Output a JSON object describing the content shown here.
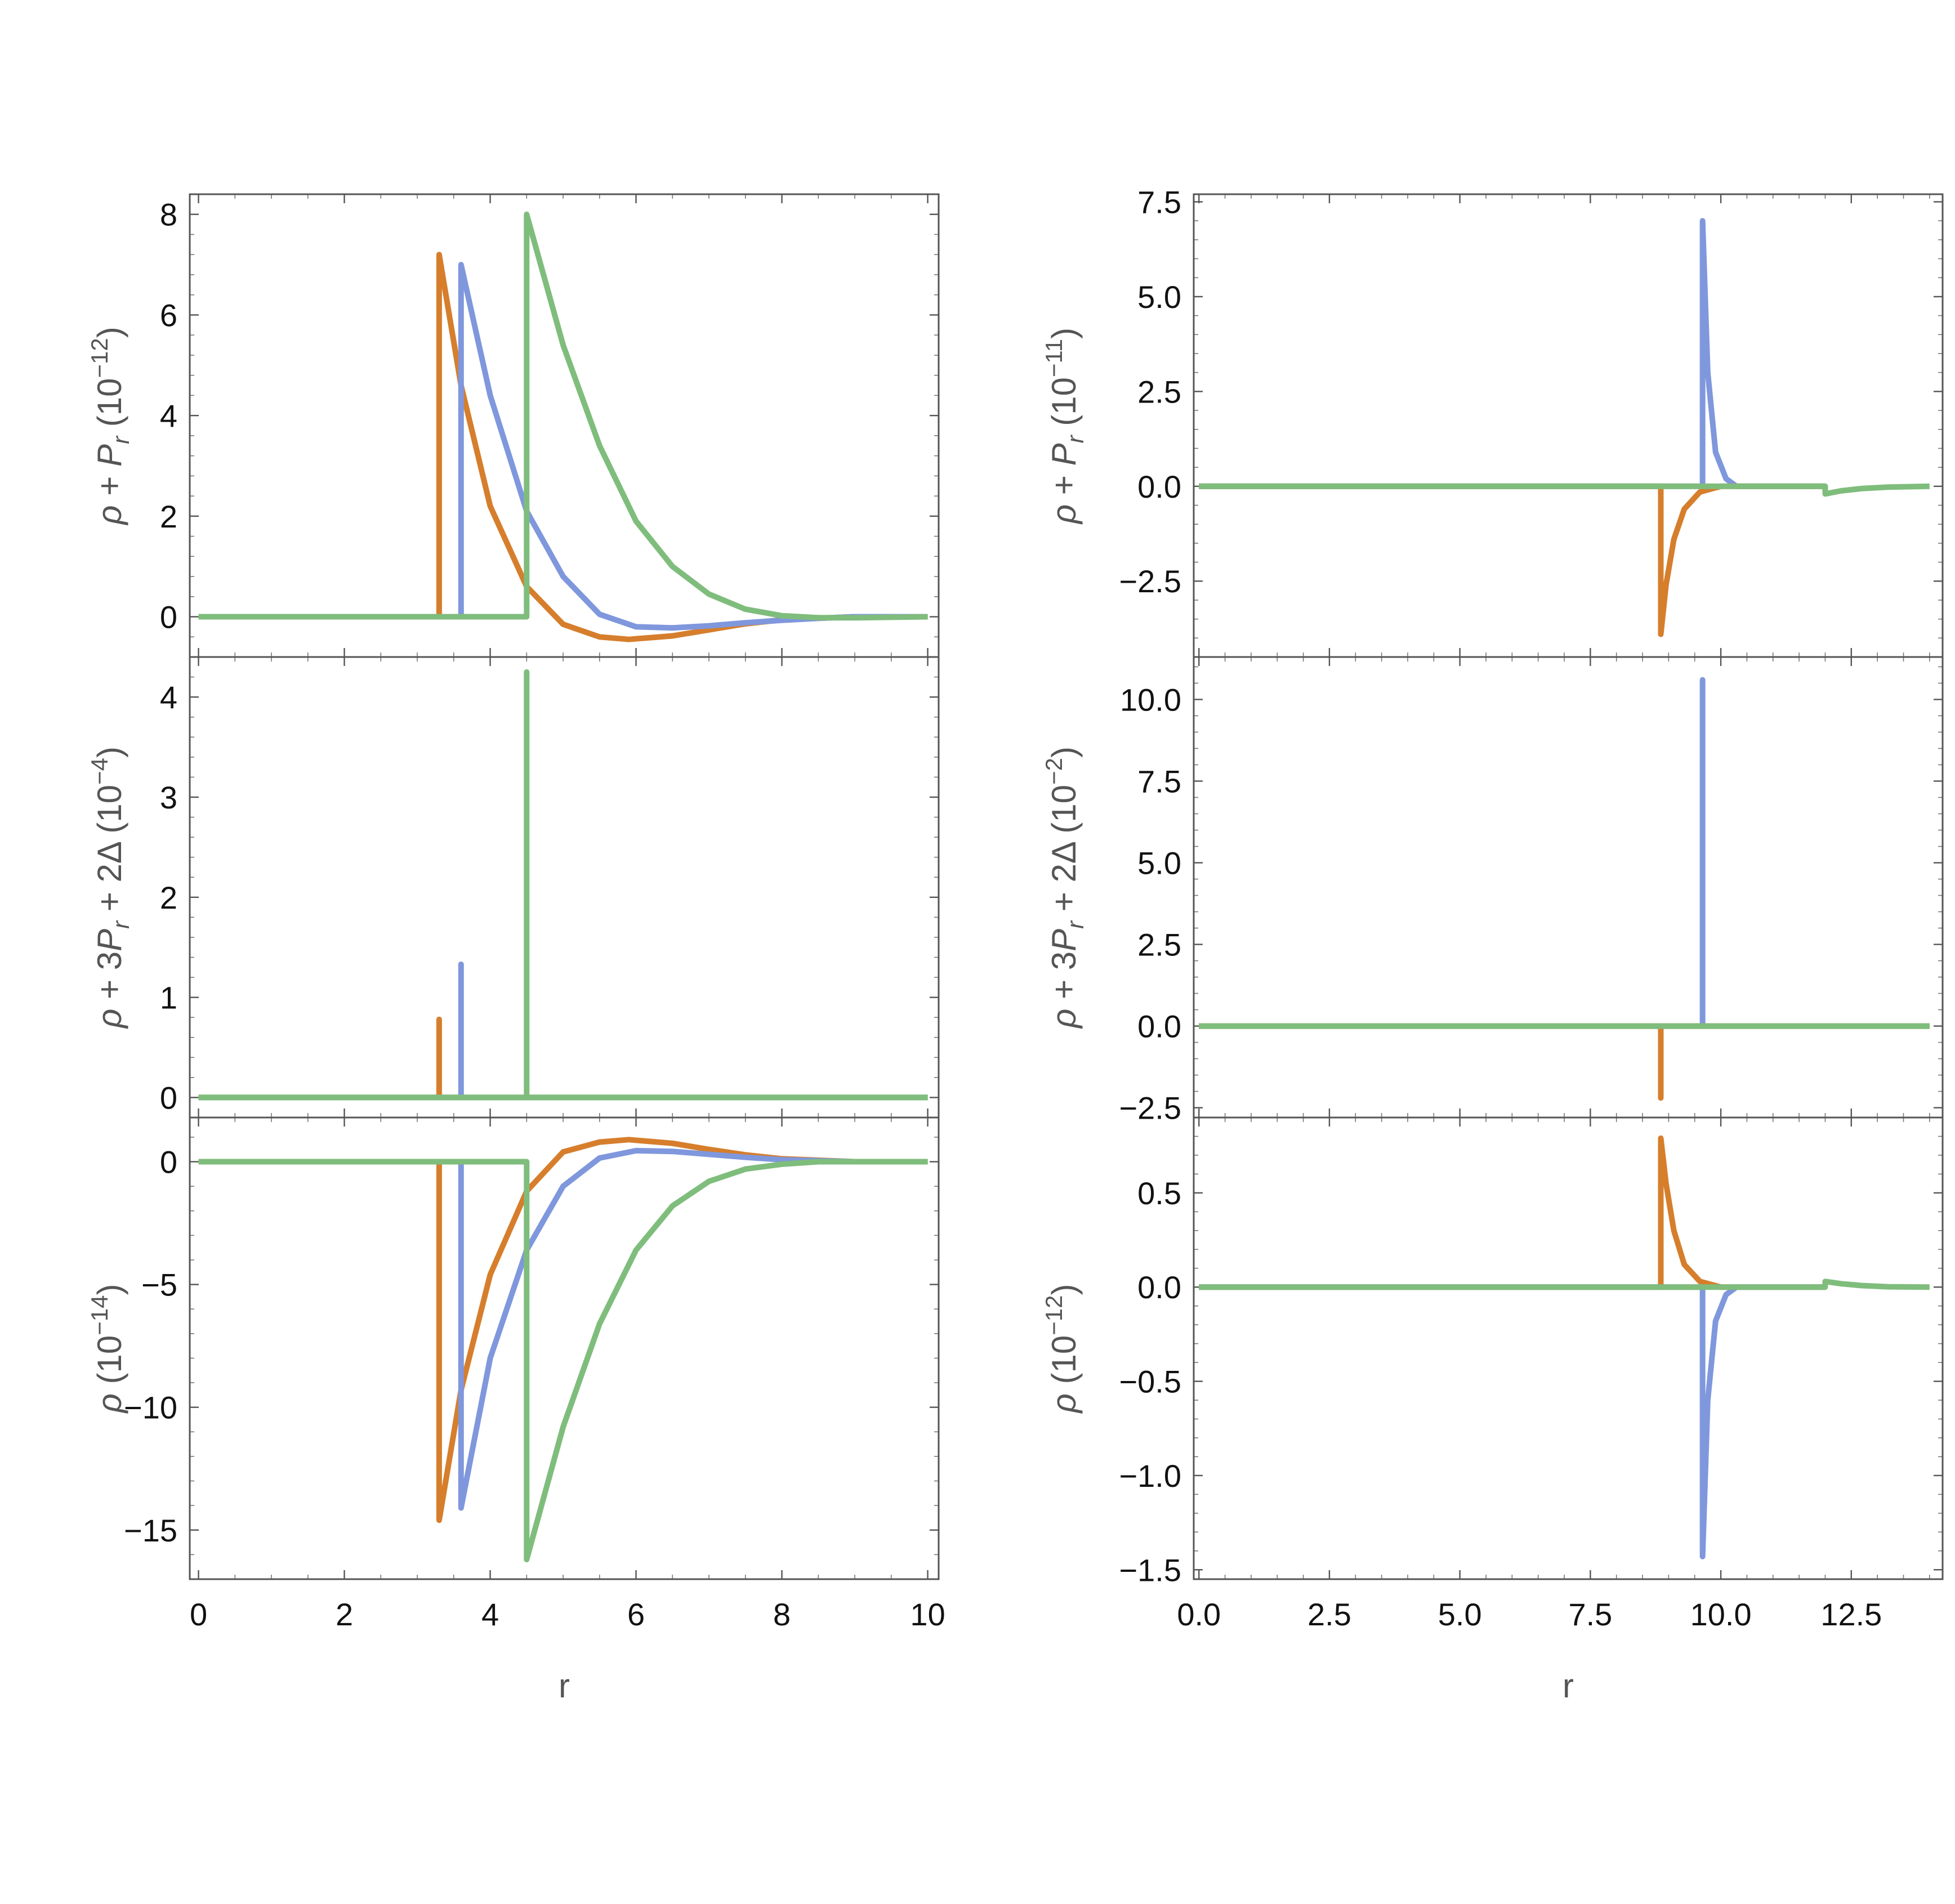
{
  "colors": {
    "orange": "#d67e2c",
    "blue": "#7f97dc",
    "green": "#7fbd7c"
  },
  "chart_data": [
    {
      "type": "line",
      "panel": "left-top",
      "ylabel_parts": [
        "ρ",
        " + ",
        "P",
        "r",
        " (10",
        "−12",
        ")"
      ],
      "xlim": [
        0,
        10
      ],
      "ylim": [
        -0.8,
        8.4
      ],
      "yticks": [
        0,
        2,
        4,
        6,
        8
      ],
      "ytick_labels": [
        "0",
        "2",
        "4",
        "6",
        "8"
      ],
      "series": [
        {
          "color": "orange",
          "x": [
            0,
            3.3,
            3.3,
            3.6,
            4.0,
            4.5,
            5.0,
            5.5,
            5.9,
            6.5,
            7.0,
            7.5,
            8.0,
            9.0,
            10.0
          ],
          "y": [
            0,
            0,
            7.2,
            4.6,
            2.2,
            0.6,
            -0.15,
            -0.4,
            -0.45,
            -0.38,
            -0.26,
            -0.14,
            -0.06,
            0,
            0
          ]
        },
        {
          "color": "blue",
          "x": [
            0,
            3.6,
            3.6,
            4.0,
            4.5,
            5.0,
            5.5,
            6.0,
            6.5,
            7.0,
            7.5,
            8.0,
            8.5,
            9.0,
            10.0
          ],
          "y": [
            0,
            0,
            7.0,
            4.4,
            2.1,
            0.8,
            0.05,
            -0.2,
            -0.22,
            -0.18,
            -0.12,
            -0.07,
            -0.03,
            0,
            0
          ]
        },
        {
          "color": "green",
          "x": [
            0,
            4.5,
            4.5,
            5.0,
            5.5,
            6.0,
            6.5,
            7.0,
            7.5,
            8.0,
            8.5,
            9.0,
            10.0
          ],
          "y": [
            0,
            0,
            8.0,
            5.4,
            3.4,
            1.9,
            1.0,
            0.45,
            0.15,
            0.02,
            -0.02,
            -0.02,
            0
          ]
        }
      ]
    },
    {
      "type": "line",
      "panel": "left-middle",
      "ylabel_parts": [
        "ρ",
        " + 3",
        "P",
        "r",
        " + 2Δ (10",
        "−4",
        ")"
      ],
      "xlim": [
        0,
        10
      ],
      "ylim": [
        -0.2,
        4.4
      ],
      "yticks": [
        0,
        1,
        2,
        3,
        4
      ],
      "ytick_labels": [
        "0",
        "1",
        "2",
        "3",
        "4"
      ],
      "series": [
        {
          "color": "orange",
          "x": [
            0,
            3.3,
            3.3,
            3.3,
            10.0
          ],
          "y": [
            0,
            0,
            0.78,
            0,
            0
          ]
        },
        {
          "color": "blue",
          "x": [
            0,
            3.6,
            3.6,
            3.6,
            10.0
          ],
          "y": [
            0,
            0,
            1.33,
            0,
            0
          ]
        },
        {
          "color": "green",
          "x": [
            0,
            4.5,
            4.5,
            4.5,
            10.0
          ],
          "y": [
            0,
            0,
            4.25,
            0,
            0
          ]
        }
      ]
    },
    {
      "type": "line",
      "panel": "left-bottom",
      "ylabel_parts": [
        "ρ",
        "  (10",
        "−14",
        ")"
      ],
      "xlim": [
        0,
        10
      ],
      "ylim": [
        -17,
        1.8
      ],
      "yticks": [
        0,
        -5,
        -10,
        -15
      ],
      "ytick_labels": [
        "0",
        "−5",
        "−10",
        "−15"
      ],
      "xticks": [
        0,
        2,
        4,
        6,
        8,
        10
      ],
      "xtick_labels": [
        "0",
        "2",
        "4",
        "6",
        "8",
        "10"
      ],
      "xlabel": "r",
      "series": [
        {
          "color": "orange",
          "x": [
            0,
            3.3,
            3.3,
            3.6,
            4.0,
            4.5,
            5.0,
            5.5,
            5.9,
            6.5,
            7.0,
            7.5,
            8.0,
            9.0,
            10.0
          ],
          "y": [
            0,
            0,
            -14.6,
            -9.3,
            -4.6,
            -1.2,
            0.4,
            0.8,
            0.9,
            0.75,
            0.5,
            0.28,
            0.12,
            0,
            0
          ]
        },
        {
          "color": "blue",
          "x": [
            0,
            3.6,
            3.6,
            4.0,
            4.5,
            5.0,
            5.5,
            6.0,
            6.5,
            7.0,
            7.5,
            8.0,
            9.0,
            10.0
          ],
          "y": [
            0,
            0,
            -14.1,
            -8.0,
            -3.6,
            -1.0,
            0.15,
            0.45,
            0.42,
            0.3,
            0.18,
            0.08,
            0,
            0
          ]
        },
        {
          "color": "green",
          "x": [
            0,
            4.5,
            4.5,
            5.0,
            5.5,
            6.0,
            6.5,
            7.0,
            7.5,
            8.0,
            8.5,
            9.0,
            10.0
          ],
          "y": [
            0,
            0,
            -16.2,
            -10.8,
            -6.6,
            -3.6,
            -1.8,
            -0.8,
            -0.3,
            -0.1,
            0,
            0,
            0
          ]
        }
      ]
    },
    {
      "type": "line",
      "panel": "right-top",
      "ylabel_parts": [
        "ρ",
        " + ",
        "P",
        "r",
        " (10",
        "−11",
        ")"
      ],
      "xlim": [
        -0.2,
        14.2
      ],
      "ylim": [
        -4.5,
        7.7
      ],
      "yticks": [
        -2.5,
        0,
        2.5,
        5,
        7.5
      ],
      "ytick_labels": [
        "−2.5",
        "0.0",
        "2.5",
        "5.0",
        "7.5"
      ],
      "series": [
        {
          "color": "blue",
          "x": [
            0,
            9.65,
            9.65,
            9.75,
            9.9,
            10.1,
            10.3,
            12.0
          ],
          "y": [
            0,
            0,
            7.0,
            3.0,
            0.9,
            0.2,
            0,
            0
          ]
        },
        {
          "color": "orange",
          "x": [
            0,
            8.85,
            8.85,
            8.95,
            9.1,
            9.3,
            9.6,
            10.0,
            12.0
          ],
          "y": [
            0,
            0,
            -3.9,
            -2.6,
            -1.4,
            -0.6,
            -0.15,
            0,
            0
          ]
        },
        {
          "color": "green",
          "x": [
            0,
            12.0,
            12.0,
            12.3,
            12.7,
            13.2,
            14.0
          ],
          "y": [
            0,
            0,
            -0.2,
            -0.12,
            -0.06,
            -0.02,
            0
          ]
        }
      ]
    },
    {
      "type": "line",
      "panel": "right-middle",
      "ylabel_parts": [
        "ρ",
        " + 3",
        "P",
        "r",
        " + 2Δ (10",
        "−2",
        ")"
      ],
      "xlim": [
        -0.2,
        14.2
      ],
      "ylim": [
        -2.8,
        11.3
      ],
      "yticks": [
        -2.5,
        0,
        2.5,
        5,
        7.5,
        10
      ],
      "ytick_labels": [
        "−2.5",
        "0.0",
        "2.5",
        "5.0",
        "7.5",
        "10.0"
      ],
      "series": [
        {
          "color": "blue",
          "x": [
            0,
            9.65,
            9.65,
            9.65,
            14.0
          ],
          "y": [
            0,
            0,
            10.6,
            0,
            0
          ]
        },
        {
          "color": "orange",
          "x": [
            0,
            8.85,
            8.85,
            8.85,
            14.0
          ],
          "y": [
            0,
            0,
            -2.2,
            0,
            0
          ]
        },
        {
          "color": "green",
          "x": [
            0,
            14.0
          ],
          "y": [
            0,
            0
          ]
        }
      ]
    },
    {
      "type": "line",
      "panel": "right-bottom",
      "ylabel_parts": [
        "ρ",
        " (10",
        "−12",
        ")"
      ],
      "xlim": [
        -0.2,
        14.2
      ],
      "ylim": [
        -1.55,
        0.9
      ],
      "yticks": [
        0.5,
        0,
        -0.5,
        -1,
        -1.5
      ],
      "ytick_labels": [
        "0.5",
        "0.0",
        "−0.5",
        "−1.0",
        "−1.5"
      ],
      "xticks": [
        0,
        2.5,
        5,
        7.5,
        10,
        12.5
      ],
      "xtick_labels": [
        "0.0",
        "2.5",
        "5.0",
        "7.5",
        "10.0",
        "12.5"
      ],
      "xlabel": "r",
      "series": [
        {
          "color": "orange",
          "x": [
            0,
            8.85,
            8.85,
            8.95,
            9.1,
            9.3,
            9.6,
            10.0,
            12.0
          ],
          "y": [
            0,
            0,
            0.79,
            0.55,
            0.3,
            0.12,
            0.03,
            0,
            0
          ]
        },
        {
          "color": "blue",
          "x": [
            0,
            9.65,
            9.65,
            9.75,
            9.9,
            10.1,
            10.3,
            12.0
          ],
          "y": [
            0,
            0,
            -1.43,
            -0.6,
            -0.18,
            -0.04,
            0,
            0
          ]
        },
        {
          "color": "green",
          "x": [
            0,
            12.0,
            12.0,
            12.3,
            12.7,
            13.2,
            14.0
          ],
          "y": [
            0,
            0,
            0.03,
            0.018,
            0.008,
            0.002,
            0
          ]
        }
      ]
    }
  ]
}
